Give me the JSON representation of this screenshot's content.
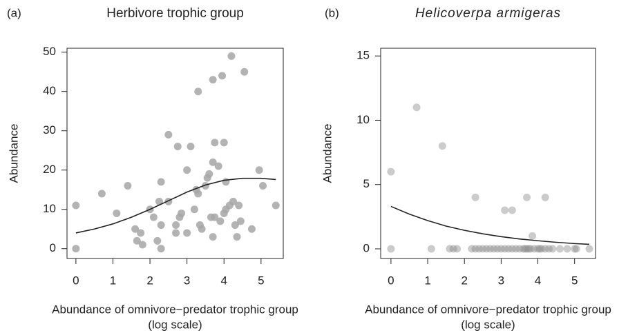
{
  "chart_data": [
    {
      "type": "scatter",
      "panel_label": "(a)",
      "title": "Herbivore trophic group",
      "title_italic": false,
      "xlabel": [
        "Abundance of omnivore−predator trophic group",
        "(log scale)"
      ],
      "ylabel": "Abundance",
      "xlim": [
        -0.24,
        5.6
      ],
      "ylim": [
        -2.5,
        51
      ],
      "xticks": [
        0,
        1,
        2,
        3,
        4,
        5
      ],
      "yticks": [
        0,
        10,
        20,
        30,
        40,
        50
      ],
      "point_color": "#a6a6a6",
      "point_opacity": 0.85,
      "curve_color": "#222222",
      "points": {
        "x": [
          0,
          0,
          0.7,
          1.1,
          1.4,
          1.6,
          1.65,
          1.75,
          1.8,
          2.0,
          2.1,
          2.2,
          2.25,
          2.3,
          2.3,
          2.3,
          2.5,
          2.5,
          2.7,
          2.7,
          2.75,
          2.8,
          2.85,
          3.0,
          3.0,
          3.1,
          3.2,
          3.25,
          3.3,
          3.3,
          3.35,
          3.4,
          3.5,
          3.55,
          3.6,
          3.65,
          3.7,
          3.7,
          3.7,
          3.75,
          3.75,
          3.85,
          3.9,
          3.95,
          4.0,
          4.0,
          4.05,
          4.05,
          4.15,
          4.2,
          4.25,
          4.3,
          4.35,
          4.4,
          4.45,
          4.55,
          4.75,
          4.95,
          5.05,
          5.4
        ],
        "y": [
          11,
          0,
          14,
          9,
          16,
          5,
          2,
          4,
          1,
          10,
          8,
          2,
          12,
          17,
          6,
          0,
          29,
          12,
          6,
          4,
          26,
          8,
          9,
          20,
          4,
          26,
          10,
          15,
          40,
          14,
          6,
          5,
          16,
          18,
          19,
          8,
          3,
          43,
          22,
          27,
          8,
          21,
          7,
          44,
          9,
          27,
          17,
          10,
          11,
          49,
          12,
          6,
          3,
          11,
          7,
          45,
          5,
          20,
          16,
          11
        ]
      },
      "curve": {
        "x": [
          0,
          0.5,
          1,
          1.5,
          2,
          2.5,
          3,
          3.5,
          4,
          4.5,
          5,
          5.4
        ],
        "y": [
          4,
          5,
          6.3,
          8,
          10,
          12.2,
          14.4,
          16.2,
          17.4,
          17.9,
          17.9,
          17.6
        ]
      }
    },
    {
      "type": "scatter",
      "panel_label": "(b)",
      "title": "Helicoverpa armigeras",
      "title_italic": true,
      "xlabel": [
        "Abundance of omnivore−predator trophic group",
        "(log scale)"
      ],
      "ylabel": "Abundance",
      "xlim": [
        -0.28,
        5.57
      ],
      "ylim": [
        -0.75,
        15.6
      ],
      "xticks": [
        0,
        1,
        2,
        3,
        4,
        5
      ],
      "yticks": [
        0,
        5,
        10,
        15
      ],
      "point_color": "#8c8c8c",
      "point_opacity": 0.45,
      "curve_color": "#222222",
      "points": {
        "x": [
          0,
          0,
          0.7,
          1.1,
          1.4,
          2.3,
          3.1,
          3.3,
          3.7,
          3.85,
          4.2,
          1.6,
          1.7,
          1.8,
          2.2,
          2.3,
          2.4,
          2.5,
          2.6,
          2.7,
          2.8,
          2.9,
          3.0,
          3.1,
          3.2,
          3.3,
          3.4,
          3.5,
          3.6,
          3.65,
          3.7,
          3.75,
          3.8,
          3.9,
          4.0,
          4.05,
          4.1,
          4.2,
          4.3,
          4.4,
          4.6,
          4.8,
          5.0,
          5.05,
          5.4
        ],
        "y": [
          6,
          0,
          11,
          0,
          8,
          4,
          3,
          3,
          4,
          1,
          4,
          0,
          0,
          0,
          0,
          0,
          0,
          0,
          0,
          0,
          0,
          0,
          0,
          0,
          0,
          0,
          0,
          0,
          0,
          0,
          0,
          0,
          0,
          0,
          0,
          0,
          0,
          0,
          0,
          0,
          0,
          0,
          0,
          0,
          0
        ]
      },
      "curve": {
        "x": [
          0,
          0.5,
          1,
          1.5,
          2,
          2.5,
          3,
          3.5,
          4,
          4.5,
          5,
          5.4
        ],
        "y": [
          3.3,
          2.7,
          2.2,
          1.77,
          1.44,
          1.17,
          0.95,
          0.77,
          0.63,
          0.51,
          0.41,
          0.35
        ]
      }
    }
  ]
}
